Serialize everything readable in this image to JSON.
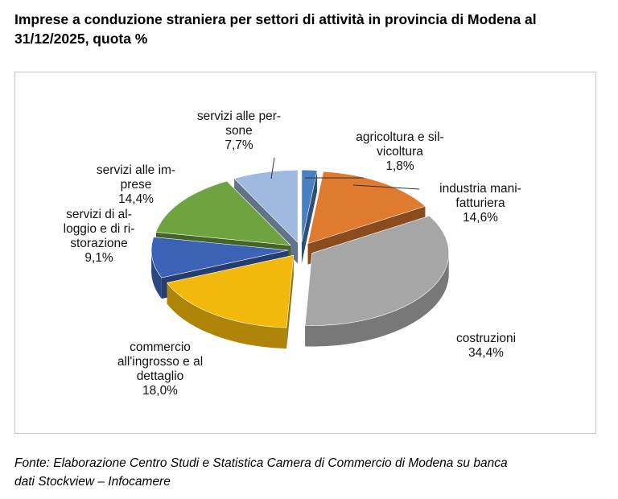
{
  "title_line1": "Imprese a conduzione straniera per settori di attività in provincia di Modena al",
  "title_line2": "31/12/2025, quota %",
  "source_line1": "Fonte: Elaborazione Centro Studi e Statistica Camera di Commercio di Modena su banca",
  "source_line2": "dati Stockview – Infocamere",
  "chart_data": {
    "type": "pie",
    "title": "Imprese a conduzione straniera per settori di attività in provincia di Modena al 31/12/2025, quota %",
    "unit": "%",
    "categories": [
      "agricoltura e silvicoltura",
      "industria manifatturiera",
      "costruzioni",
      "commercio all'ingrosso e al dettaglio",
      "servizi di alloggio e di ristorazione",
      "servizi alle imprese",
      "servizi alle persone"
    ],
    "values": [
      1.8,
      14.6,
      34.4,
      18.0,
      9.1,
      14.4,
      7.7
    ],
    "value_labels": [
      "1,8%",
      "14,6%",
      "34,4%",
      "18,0%",
      "9,1%",
      "14,4%",
      "7,7%"
    ],
    "label_lines": [
      [
        "agricoltura e sil-",
        "vicoltura"
      ],
      [
        "industria mani-",
        "fatturiera"
      ],
      [
        "costruzioni"
      ],
      [
        "commercio",
        "all'ingrosso e al",
        "dettaglio"
      ],
      [
        "servizi di al-",
        "loggio e di ri-",
        "storazione"
      ],
      [
        "servizi alle im-",
        "prese"
      ],
      [
        "servizi alle per-",
        "sone"
      ]
    ],
    "colors": [
      "#4a7fc1",
      "#e07a2f",
      "#a6a6a6",
      "#f2b90c",
      "#3b62b4",
      "#6ea33f",
      "#9fb9df"
    ],
    "exploded": true,
    "style": "3d"
  }
}
